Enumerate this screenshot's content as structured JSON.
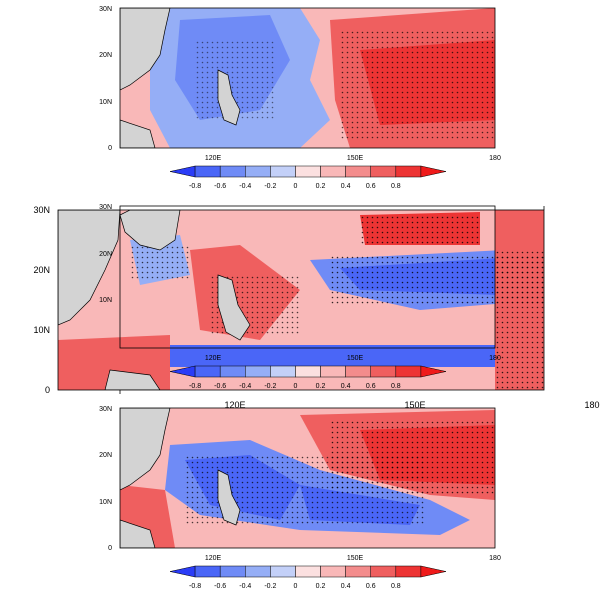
{
  "colors": {
    "land": "#d3d3d3",
    "levels": [
      "#2a3cf7",
      "#4a66f7",
      "#6f8bf6",
      "#95aef6",
      "#c3d0f8",
      "#fbe0e0",
      "#f9b8b8",
      "#f38c8c",
      "#ef5f5f",
      "#ed3434",
      "#ef1a1a"
    ]
  },
  "colorbar_ticks": [
    "-0.8",
    "-0.6",
    "-0.4",
    "-0.2",
    "0",
    "0.2",
    "0.4",
    "0.6",
    "0.8"
  ],
  "panels": [
    {
      "id": "top",
      "lat_labels": [
        "0",
        "10N",
        "20N",
        "30N"
      ],
      "lon_labels": [
        "120E",
        "150E",
        "180"
      ]
    },
    {
      "id": "middle",
      "lat_labels": [
        "0",
        "10N",
        "20N",
        "30N"
      ],
      "lon_labels": [
        "120E",
        "150E",
        "180"
      ],
      "inset_lat_labels": [
        "10N",
        "20N",
        "30N"
      ],
      "inset_lon_labels": [
        "120E",
        "150E",
        "180"
      ]
    },
    {
      "id": "bottom",
      "lat_labels": [
        "0",
        "10N",
        "20N",
        "30N"
      ],
      "lon_labels": [
        "120E",
        "150E",
        "180"
      ]
    }
  ]
}
